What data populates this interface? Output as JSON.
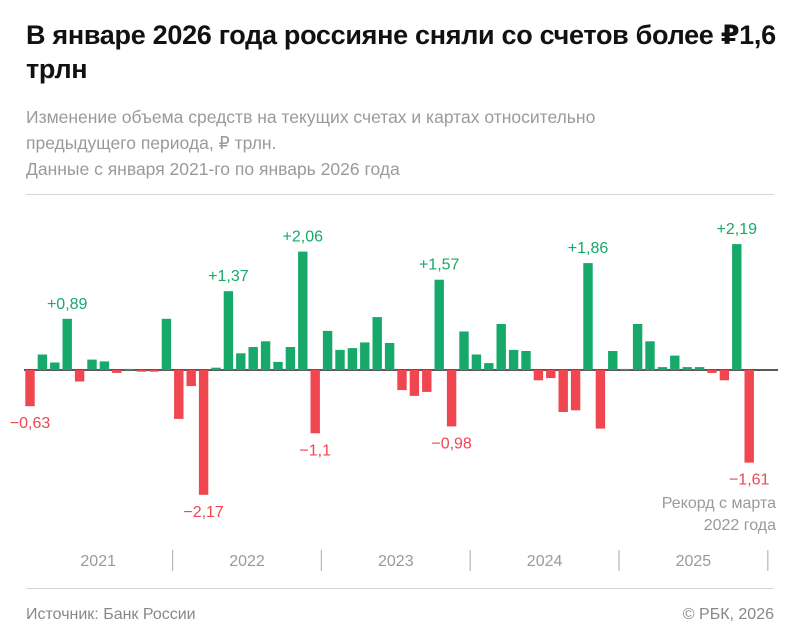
{
  "title": "В январе 2026 года россияне сняли со счетов более ₽1,6 трлн",
  "subtitle_lines": [
    "Изменение объема средств на текущих счетах и картах относительно",
    "предыдущего периода, ₽ трлн.",
    "Данные с января 2021-го по январь 2026 года"
  ],
  "source": "Источник: Банк России",
  "copyright": "© РБК, 2026",
  "colors": {
    "positive": "#17a96a",
    "negative": "#ef4650",
    "text": "#111111",
    "muted": "#9a9a9a"
  },
  "chart_data": {
    "type": "bar",
    "title": "",
    "xlabel": "",
    "ylabel": "",
    "ylim": [
      -2.4,
      2.4
    ],
    "grid": false,
    "legend": "none",
    "year_labels": [
      "2021",
      "2022",
      "2023",
      "2024",
      "2025"
    ],
    "values": [
      -0.63,
      0.27,
      0.13,
      0.89,
      -0.2,
      0.18,
      0.15,
      -0.05,
      0.02,
      -0.03,
      -0.03,
      0.89,
      -0.85,
      -0.28,
      -2.17,
      0.04,
      1.37,
      0.29,
      0.4,
      0.5,
      0.14,
      0.4,
      2.06,
      -1.1,
      0.68,
      0.35,
      0.38,
      0.48,
      0.92,
      0.47,
      -0.35,
      -0.45,
      -0.38,
      1.57,
      -0.98,
      0.67,
      0.27,
      0.12,
      0.8,
      0.35,
      0.33,
      -0.18,
      -0.14,
      -0.73,
      -0.7,
      1.86,
      -1.02,
      0.33,
      0.02,
      0.8,
      0.5,
      0.05,
      0.25,
      0.05,
      0.05,
      -0.05,
      -0.18,
      2.19,
      -1.61
    ],
    "annotations": [
      {
        "index": 0,
        "label": "−0,63"
      },
      {
        "index": 3,
        "label": "+0,89"
      },
      {
        "index": 14,
        "label": "−2,17"
      },
      {
        "index": 16,
        "label": "+1,37"
      },
      {
        "index": 22,
        "label": "+2,06"
      },
      {
        "index": 23,
        "label": "−1,1"
      },
      {
        "index": 33,
        "label": "+1,57"
      },
      {
        "index": 34,
        "label": "−0,98"
      },
      {
        "index": 45,
        "label": "+1,86"
      },
      {
        "index": 57,
        "label": "+2,19"
      },
      {
        "index": 58,
        "label": "−1,61"
      }
    ],
    "note_lines": [
      "Рекорд с марта",
      "2022 года"
    ]
  }
}
